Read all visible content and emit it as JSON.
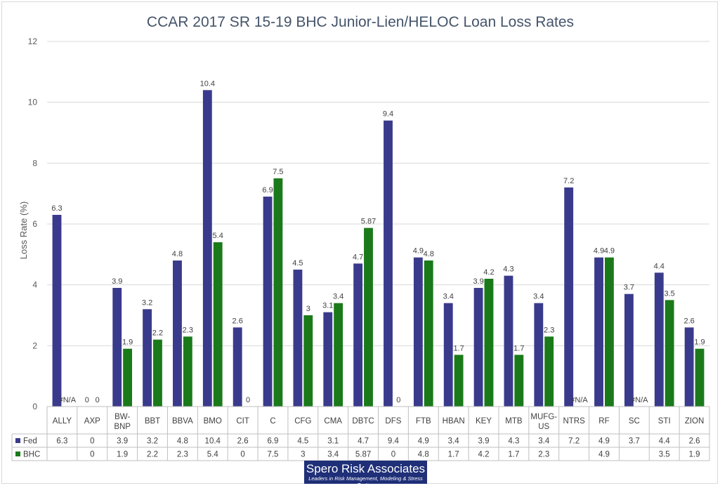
{
  "chart_data": {
    "type": "bar",
    "title": "CCAR 2017 SR 15-19 BHC Junior-Lien/HELOC Loan Loss Rates",
    "ylabel": "Loss Rate (%)",
    "xlabel": "",
    "ylim": [
      0,
      12
    ],
    "yticks": [
      "0",
      "2",
      "4",
      "6",
      "8",
      "10",
      "12"
    ],
    "grid": true,
    "legend": "data-table",
    "categories": [
      "ALLY",
      "AXP",
      "BW-BNP",
      "BBT",
      "BBVA",
      "BMO",
      "CIT",
      "C",
      "CFG",
      "CMA",
      "DBTC",
      "DFS",
      "FTB",
      "HBAN",
      "KEY",
      "MTB",
      "MUFG-US",
      "NTRS",
      "RF",
      "SC",
      "STI",
      "ZION"
    ],
    "series": [
      {
        "name": "Fed",
        "color": "#3a3a8c",
        "values": [
          6.3,
          0,
          3.9,
          3.2,
          4.8,
          10.4,
          2.6,
          6.9,
          4.5,
          3.1,
          4.7,
          9.4,
          4.9,
          3.4,
          3.9,
          4.3,
          3.4,
          7.2,
          4.9,
          3.7,
          4.4,
          2.6
        ],
        "labels": [
          "6.3",
          "0",
          "3.9",
          "3.2",
          "4.8",
          "10.4",
          "2.6",
          "6.9",
          "4.5",
          "3.1",
          "4.7",
          "9.4",
          "4.9",
          "3.4",
          "3.9",
          "4.3",
          "3.4",
          "7.2",
          "4.9",
          "3.7",
          "4.4",
          "2.6"
        ],
        "table": [
          "6.3",
          "0",
          "3.9",
          "3.2",
          "4.8",
          "10.4",
          "2.6",
          "6.9",
          "4.5",
          "3.1",
          "4.7",
          "9.4",
          "4.9",
          "3.4",
          "3.9",
          "4.3",
          "3.4",
          "7.2",
          "4.9",
          "3.7",
          "4.4",
          "2.6"
        ]
      },
      {
        "name": "BHC",
        "color": "#1a7a1a",
        "values": [
          null,
          0,
          1.9,
          2.2,
          2.3,
          5.4,
          0,
          7.5,
          3,
          3.4,
          5.87,
          0,
          4.8,
          1.7,
          4.2,
          1.7,
          2.3,
          null,
          4.9,
          null,
          3.5,
          1.9
        ],
        "labels": [
          "#N/A",
          "0",
          "1.9",
          "2.2",
          "2.3",
          "5.4",
          "0",
          "7.5",
          "3",
          "3.4",
          "5.87",
          "0",
          "4.8",
          "1.7",
          "4.2",
          "1.7",
          "2.3",
          "#N/A",
          "4.9",
          "#N/A",
          "3.5",
          "1.9"
        ],
        "table": [
          "",
          "0",
          "1.9",
          "2.2",
          "2.3",
          "5.4",
          "0",
          "7.5",
          "3",
          "3.4",
          "5.87",
          "0",
          "4.8",
          "1.7",
          "4.2",
          "1.7",
          "2.3",
          "",
          "4.9",
          "",
          "3.5",
          "1.9"
        ]
      }
    ]
  },
  "logo": {
    "name": "Spero Risk Associates",
    "tagline": "Leaders in Risk Management, Modeling & Stress Testing"
  },
  "colors": {
    "fed": "#3a3a8c",
    "bhc": "#1a7a1a",
    "grid": "#d9d9d9",
    "logo_bg": "#1f2f78"
  }
}
